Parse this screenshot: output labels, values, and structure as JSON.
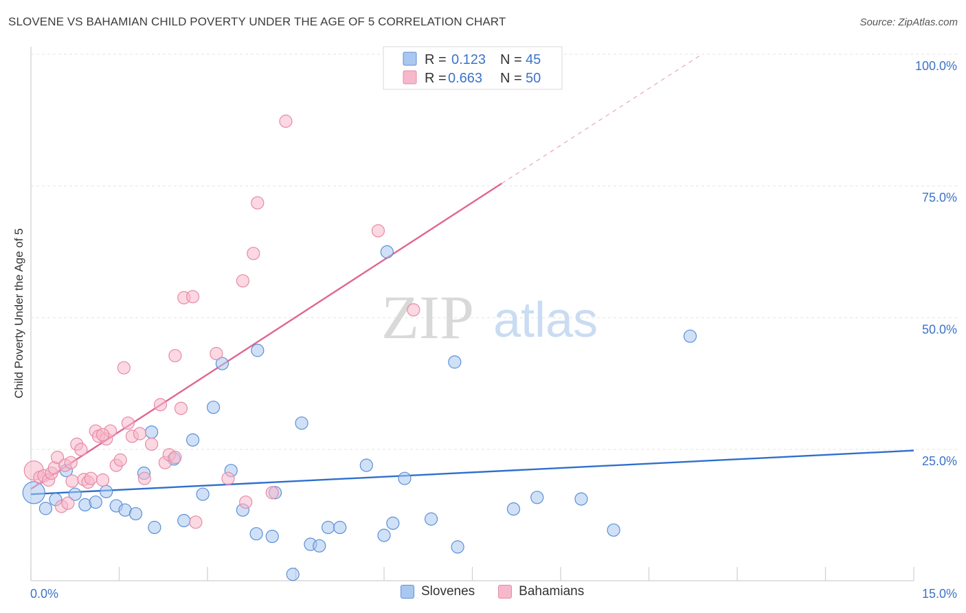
{
  "header": {
    "title": "SLOVENE VS BAHAMIAN CHILD POVERTY UNDER THE AGE OF 5 CORRELATION CHART",
    "source": "Source: ZipAtlas.com"
  },
  "watermark": {
    "zip": "ZIP",
    "atlas": "atlas"
  },
  "colors": {
    "slovenes_fill": "#a9c8f0",
    "slovenes_stroke": "#5b8fd6",
    "slovenes_line": "#2e6fcc",
    "bahamians_fill": "#f7b8cb",
    "bahamians_stroke": "#e68aa7",
    "bahamians_line": "#e06593",
    "accent_text": "#3b73c7"
  },
  "legend": {
    "rows": [
      {
        "r_label": "R =",
        "r_value": "0.123",
        "n_label": "N =",
        "n_value": "45"
      },
      {
        "r_label": "R =",
        "r_value": "0.663",
        "n_label": "N =",
        "n_value": "50"
      }
    ]
  },
  "bottom_legend": {
    "series1": "Slovenes",
    "series2": "Bahamians"
  },
  "chart_data": {
    "type": "scatter",
    "title": "SLOVENE VS BAHAMIAN CHILD POVERTY UNDER THE AGE OF 5 CORRELATION CHART",
    "xlabel": "",
    "ylabel": "Child Poverty Under the Age of 5",
    "xlim": [
      0,
      15
    ],
    "ylim": [
      0,
      105
    ],
    "x_tick_labels": [
      "0.0%",
      "15.0%"
    ],
    "y_ticks": [
      25,
      50,
      75,
      100
    ],
    "y_tick_labels": [
      "25.0%",
      "50.0%",
      "75.0%",
      "100.0%"
    ],
    "grid": true,
    "legend_position": "top-center",
    "series": [
      {
        "name": "Slovenes",
        "R": 0.123,
        "N": 45,
        "trend": {
          "x0": 0,
          "y0": 16.5,
          "x1": 15,
          "y1": 24.8,
          "dashed_from": 15
        },
        "points": [
          [
            0.05,
            16.8
          ],
          [
            0.25,
            13.8
          ],
          [
            0.42,
            15.5
          ],
          [
            0.6,
            21
          ],
          [
            0.75,
            16.5
          ],
          [
            0.92,
            14.5
          ],
          [
            1.1,
            15
          ],
          [
            1.28,
            17
          ],
          [
            1.45,
            14.3
          ],
          [
            1.6,
            13.5
          ],
          [
            1.78,
            12.8
          ],
          [
            1.92,
            20.5
          ],
          [
            2.05,
            28.3
          ],
          [
            2.1,
            10.2
          ],
          [
            2.43,
            23.2
          ],
          [
            2.6,
            11.5
          ],
          [
            2.75,
            26.8
          ],
          [
            2.92,
            16.5
          ],
          [
            3.1,
            33
          ],
          [
            3.25,
            41.3
          ],
          [
            3.4,
            21
          ],
          [
            3.6,
            13.5
          ],
          [
            3.85,
            43.8
          ],
          [
            3.83,
            9
          ],
          [
            4.1,
            8.5
          ],
          [
            4.15,
            16.8
          ],
          [
            4.45,
            1.3
          ],
          [
            4.6,
            30
          ],
          [
            4.75,
            7
          ],
          [
            4.9,
            6.7
          ],
          [
            5.05,
            10.2
          ],
          [
            5.25,
            10.2
          ],
          [
            5.7,
            22
          ],
          [
            6.0,
            8.7
          ],
          [
            6.05,
            62.5
          ],
          [
            6.15,
            11
          ],
          [
            6.35,
            19.5
          ],
          [
            6.8,
            11.8
          ],
          [
            7.2,
            41.6
          ],
          [
            7.25,
            6.5
          ],
          [
            8.2,
            13.7
          ],
          [
            8.6,
            15.9
          ],
          [
            9.35,
            15.6
          ],
          [
            9.9,
            9.7
          ],
          [
            11.2,
            46.5
          ]
        ]
      },
      {
        "name": "Bahamians",
        "R": 0.663,
        "N": 50,
        "trend": {
          "x0": 0,
          "y0": 17.5,
          "x1": 8.0,
          "y1": 75.5,
          "dashed_to_x": 11.4,
          "dashed_to_y": 100
        },
        "points": [
          [
            0.05,
            21
          ],
          [
            0.15,
            19.7
          ],
          [
            0.22,
            20
          ],
          [
            0.3,
            19.2
          ],
          [
            0.35,
            20.5
          ],
          [
            0.4,
            21.5
          ],
          [
            0.45,
            23.5
          ],
          [
            0.52,
            14.2
          ],
          [
            0.58,
            22
          ],
          [
            0.63,
            14.8
          ],
          [
            0.7,
            19
          ],
          [
            0.78,
            26
          ],
          [
            0.85,
            25
          ],
          [
            0.9,
            19.3
          ],
          [
            0.97,
            18.8
          ],
          [
            1.02,
            19.5
          ],
          [
            1.1,
            28.5
          ],
          [
            1.15,
            27.5
          ],
          [
            1.22,
            19.2
          ],
          [
            1.28,
            27
          ],
          [
            1.35,
            28.5
          ],
          [
            1.45,
            22
          ],
          [
            1.52,
            23
          ],
          [
            1.58,
            40.5
          ],
          [
            1.65,
            30
          ],
          [
            1.72,
            27.5
          ],
          [
            1.85,
            28
          ],
          [
            1.93,
            19.5
          ],
          [
            2.05,
            26
          ],
          [
            2.2,
            33.5
          ],
          [
            2.28,
            22.5
          ],
          [
            2.35,
            24
          ],
          [
            2.45,
            42.8
          ],
          [
            2.55,
            32.8
          ],
          [
            2.6,
            53.8
          ],
          [
            2.75,
            54
          ],
          [
            2.8,
            11.2
          ],
          [
            3.15,
            43.2
          ],
          [
            3.35,
            19.5
          ],
          [
            3.6,
            57
          ],
          [
            3.65,
            15
          ],
          [
            3.78,
            62.2
          ],
          [
            3.85,
            71.8
          ],
          [
            4.1,
            16.8
          ],
          [
            4.33,
            87.3
          ],
          [
            5.9,
            66.5
          ],
          [
            6.5,
            51.5
          ],
          [
            1.22,
            27.8
          ],
          [
            0.68,
            22.5
          ],
          [
            2.45,
            23.5
          ]
        ]
      }
    ]
  }
}
